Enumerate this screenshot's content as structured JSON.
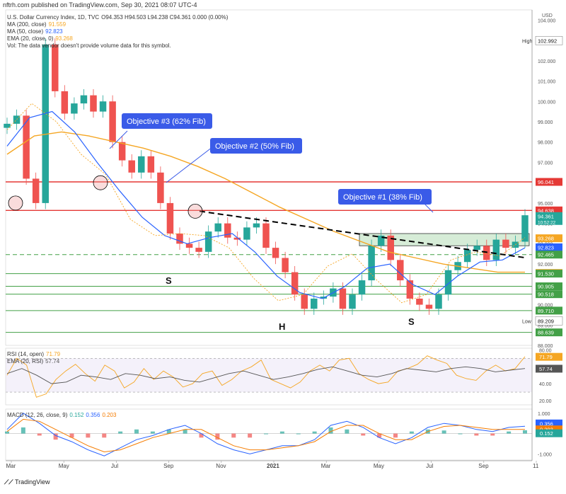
{
  "header": "nftrh.com published on TradingView.com, Sep 30, 2021 08:07 UTC-4",
  "footer_brand": "TradingView",
  "main_legend": [
    {
      "label": "U.S. Dollar Currency Index, 1D, TVC",
      "value": "O94.353  H94.503  L94.238  C94.361  0.000 (0.00%)",
      "color": "#333333"
    },
    {
      "label": "MA (200, close)",
      "value": "91.559",
      "color": "#f5a623"
    },
    {
      "label": "MA (50, close)",
      "value": "92.823",
      "color": "#2962ff"
    },
    {
      "label": "EMA (20, close, 0)",
      "value": "93.268",
      "color": "#f5a623"
    },
    {
      "label": "Vol: The data vendor doesn't provide volume data for this symbol.",
      "value": "",
      "color": "#333333"
    }
  ],
  "rsi_legend": [
    {
      "label": "RSI (14, open)",
      "value": "71.79",
      "color": "#f5a623"
    },
    {
      "label": "EMA (20, RSI)",
      "value": "57.74",
      "color": "#555555"
    }
  ],
  "macd_legend": [
    {
      "label": "MACD (12, 26, close, 9)",
      "values": [
        "0.152",
        "0.356",
        "0.203"
      ],
      "colors": [
        "#26a69a",
        "#2962ff",
        "#f57c00"
      ]
    }
  ],
  "colors": {
    "up": "#26a69a",
    "down": "#ef5350",
    "ma200": "#f5a623",
    "ma50": "#2962ff",
    "resistance": "#e53935",
    "support": "#43a047",
    "callout": "#3a5be8"
  },
  "chart_data": [
    {
      "type": "line",
      "title": "U.S. Dollar Currency Index, 1D, TVC",
      "ylabel": "USD",
      "ylim": [
        88.0,
        104.5
      ],
      "x_ticks": [
        "Mar",
        "May",
        "Jul",
        "Sep",
        "Nov",
        "2021",
        "Mar",
        "May",
        "Jul",
        "Sep",
        "11"
      ],
      "y_ticks": [
        88.0,
        89.0,
        90.0,
        91.0,
        92.0,
        93.0,
        94.0,
        95.0,
        96.0,
        97.0,
        98.0,
        99.0,
        100.0,
        101.0,
        102.0,
        103.0,
        104.0
      ],
      "series": [
        {
          "name": "U.S. Dollar Currency Index",
          "values": [
            98.9,
            99.3,
            96.2,
            95.0,
            102.8,
            100.5,
            99.4,
            99.9,
            100.3,
            99.5,
            100.0,
            98.0,
            97.1,
            96.5,
            97.3,
            96.5,
            95.0,
            93.5,
            93.0,
            92.8,
            92.6,
            93.6,
            94.0,
            93.3,
            93.2,
            93.8,
            94.0,
            92.8,
            92.3,
            91.6,
            90.5,
            89.8,
            90.3,
            90.4,
            90.8,
            89.8,
            90.5,
            91.2,
            92.9,
            93.4,
            92.2,
            91.2,
            90.3,
            90.0,
            89.8,
            90.5,
            91.7,
            92.1,
            92.7,
            92.9,
            92.2,
            93.2,
            92.8,
            93.1,
            94.4
          ]
        },
        {
          "name": "MA (200, close)",
          "values": [
            97.4,
            98.3,
            98.5,
            98.3,
            98.0,
            97.7,
            97.3,
            96.8,
            96.2,
            95.5,
            94.8,
            94.2,
            93.6,
            93.1,
            92.6,
            92.3,
            92.0,
            91.8,
            91.6,
            91.6
          ]
        },
        {
          "name": "MA (50, close)",
          "values": [
            97.8,
            99.2,
            99.5,
            98.5,
            97.0,
            95.6,
            94.3,
            93.4,
            93.0,
            93.3,
            93.5,
            92.6,
            91.4,
            90.6,
            90.3,
            90.9,
            91.8,
            92.0,
            91.0,
            90.5,
            91.4,
            92.1,
            92.2,
            92.8
          ]
        },
        {
          "name": "EMA (20, close, 0)",
          "values": [
            98.6,
            99.9,
            99.0,
            97.4,
            96.4,
            94.2,
            93.4,
            93.5,
            93.4,
            92.8,
            91.3,
            90.2,
            90.5,
            91.9,
            92.5,
            91.2,
            90.1,
            90.5,
            92.2,
            92.6,
            92.4,
            93.3
          ]
        }
      ],
      "price_labels": [
        {
          "label": "High",
          "value": "102.992"
        },
        {
          "value": "96.041",
          "color": "#e53935"
        },
        {
          "value": "94.638",
          "color": "#e53935"
        },
        {
          "value": "94.361",
          "sub": "10:52:22",
          "color": "#26a69a"
        },
        {
          "value": "93.268",
          "color": "#f5a623"
        },
        {
          "value": "92.823",
          "color": "#2962ff"
        },
        {
          "value": "92.465",
          "color": "#43a047"
        },
        {
          "value": "91.559",
          "color": "#f5a623"
        },
        {
          "value": "91.530",
          "color": "#43a047"
        },
        {
          "value": "90.905",
          "color": "#43a047"
        },
        {
          "value": "90.518",
          "color": "#43a047"
        },
        {
          "value": "89.710",
          "color": "#43a047"
        },
        {
          "label": "Low",
          "value": "89.209"
        },
        {
          "value": "88.639",
          "color": "#43a047"
        }
      ],
      "horizontal_lines": [
        {
          "value": 96.041,
          "color": "#e53935",
          "style": "solid"
        },
        {
          "value": 94.638,
          "color": "#e53935",
          "style": "solid"
        },
        {
          "value": 92.465,
          "color": "#43a047",
          "style": "dashed"
        },
        {
          "value": 91.53,
          "color": "#43a047",
          "style": "solid"
        },
        {
          "value": 90.905,
          "color": "#43a047",
          "style": "solid"
        },
        {
          "value": 90.518,
          "color": "#43a047",
          "style": "solid"
        },
        {
          "value": 89.71,
          "color": "#43a047",
          "style": "solid"
        },
        {
          "value": 88.639,
          "color": "#43a047",
          "style": "solid"
        }
      ],
      "annotations": [
        {
          "text": "Objective #3 (62% Fib)"
        },
        {
          "text": "Objective #2 (50% Fib)"
        },
        {
          "text": "Objective #1 (38% Fib)"
        },
        {
          "text": "S"
        },
        {
          "text": "H"
        },
        {
          "text": "S"
        }
      ]
    },
    {
      "type": "line",
      "title": "RSI (14, open)",
      "ylim": [
        15,
        82
      ],
      "y_ticks": [
        80.0,
        60.0,
        40.0,
        20.0
      ],
      "series": [
        {
          "name": "RSI (14, open)",
          "values": [
            50,
            70,
            62,
            24,
            28,
            45,
            55,
            63,
            52,
            43,
            62,
            55,
            35,
            42,
            58,
            45,
            55,
            48,
            36,
            40,
            52,
            55,
            38,
            45,
            55,
            60,
            68,
            45,
            40,
            35,
            42,
            55,
            62,
            55,
            68,
            70,
            52,
            45,
            40,
            42,
            55,
            58,
            63,
            73,
            68,
            64,
            50,
            46,
            44,
            55,
            62,
            55,
            58,
            72
          ]
        },
        {
          "name": "EMA (20, RSI)",
          "values": [
            52,
            58,
            50,
            40,
            42,
            50,
            48,
            45,
            52,
            50,
            46,
            48,
            44,
            42,
            47,
            52,
            55,
            50,
            45,
            48,
            52,
            57,
            60,
            55,
            50,
            48,
            52,
            58,
            56,
            54,
            58,
            60,
            58,
            54,
            56,
            58
          ]
        }
      ]
    },
    {
      "type": "line",
      "title": "MACD (12, 26, close, 9)",
      "ylim": [
        -1.3,
        1.2
      ],
      "y_ticks": [
        1.0,
        -1.0
      ],
      "series": [
        {
          "name": "MACD",
          "values": [
            0.2,
            1.0,
            0.5,
            -0.1,
            -0.4,
            -0.8,
            -1.1,
            -0.7,
            -0.3,
            -0.1,
            0.2,
            0.4,
            0.0,
            -0.5,
            -0.8,
            -1.0,
            -0.8,
            -0.6,
            -0.6,
            -0.3,
            0.4,
            0.6,
            0.3,
            -0.2,
            -0.5,
            -0.2,
            0.3,
            0.5,
            0.4,
            0.2,
            0.1,
            0.3,
            0.36
          ]
        },
        {
          "name": "Signal",
          "values": [
            0.1,
            0.7,
            0.6,
            0.2,
            -0.2,
            -0.6,
            -0.9,
            -0.8,
            -0.5,
            -0.2,
            0.0,
            0.2,
            0.2,
            -0.2,
            -0.6,
            -0.8,
            -0.8,
            -0.7,
            -0.6,
            -0.4,
            0.1,
            0.4,
            0.4,
            0.0,
            -0.3,
            -0.3,
            0.1,
            0.35,
            0.4,
            0.3,
            0.2,
            0.2,
            0.2
          ]
        }
      ]
    }
  ]
}
